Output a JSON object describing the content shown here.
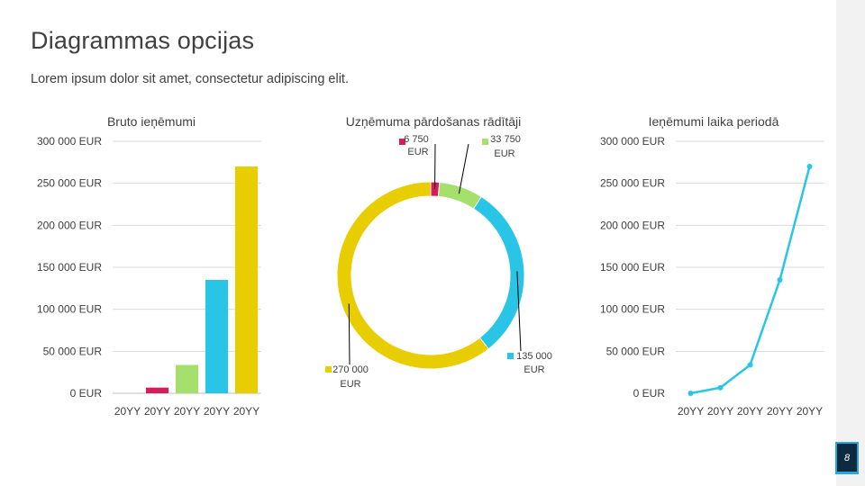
{
  "slide": {
    "title": "Diagrammas opcijas",
    "subtitle": "Lorem ipsum dolor sit amet, consectetur adipiscing elit.",
    "page_number": "8"
  },
  "colors": {
    "red": "#d81b5a",
    "green": "#a6e06c",
    "cyan": "#29c5e6",
    "yellow": "#e8cd00",
    "grid": "#d9d9d9",
    "text": "#404040"
  },
  "chart_data": [
    {
      "type": "bar",
      "title": "Bruto ieņēmumi",
      "categories": [
        "20YY",
        "20YY",
        "20YY",
        "20YY",
        "20YY"
      ],
      "values": [
        0,
        6750,
        33750,
        135000,
        270000
      ],
      "bar_colors": [
        "#d81b5a",
        "#d81b5a",
        "#a6e06c",
        "#29c5e6",
        "#e8cd00"
      ],
      "ylim": [
        0,
        300000
      ],
      "yticks": [
        "0 EUR",
        "50 000 EUR",
        "100 000 EUR",
        "150 000 EUR",
        "200 000 EUR",
        "250 000 EUR",
        "300 000 EUR"
      ],
      "grid": true
    },
    {
      "type": "pie",
      "variant": "donut",
      "title": "Uzņēmuma pārdošanas rādītāji",
      "values": [
        6750,
        33750,
        135000,
        270000
      ],
      "colors": [
        "#d81b5a",
        "#a6e06c",
        "#29c5e6",
        "#e8cd00"
      ],
      "labels": [
        {
          "line1": "6 750",
          "line2": "EUR"
        },
        {
          "line1": "33 750",
          "line2": "EUR"
        },
        {
          "line1": "135 000",
          "line2": "EUR"
        },
        {
          "line1": "270 000",
          "line2": "EUR"
        }
      ]
    },
    {
      "type": "line",
      "title": "Ieņēmumi laika periodā",
      "categories": [
        "20YY",
        "20YY",
        "20YY",
        "20YY",
        "20YY"
      ],
      "values": [
        0,
        6750,
        33750,
        135000,
        270000
      ],
      "color": "#29c5e6",
      "ylim": [
        0,
        300000
      ],
      "yticks": [
        "0 EUR",
        "50 000 EUR",
        "100 000 EUR",
        "150 000 EUR",
        "200 000 EUR",
        "250 000 EUR",
        "300 000 EUR"
      ],
      "grid": true
    }
  ]
}
